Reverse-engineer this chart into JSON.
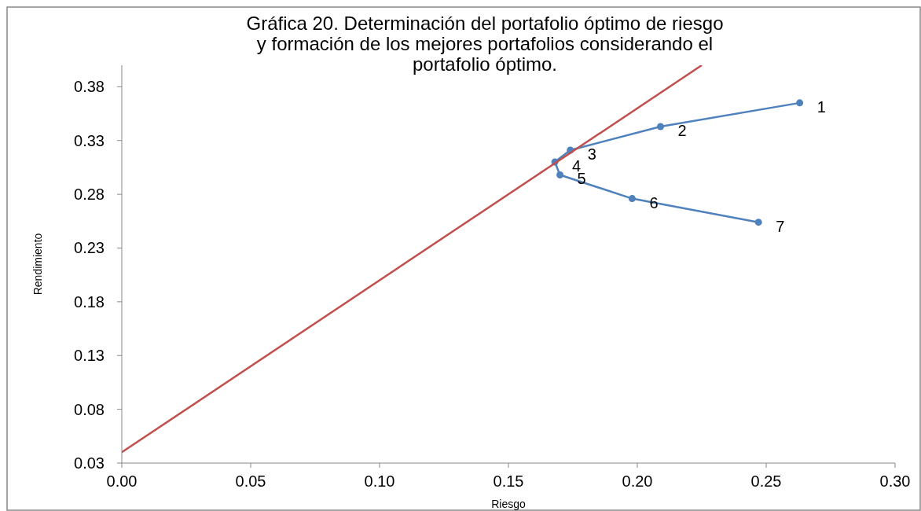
{
  "chart_data": {
    "type": "line",
    "title": "Gráfica 20. Determinación del portafolio óptimo de riesgo y formación de los mejores portafolios considerando el portafolio óptimo.",
    "xlabel": "Riesgo",
    "ylabel": "Rendimiento",
    "xlim": [
      0,
      0.3
    ],
    "xticks": [
      {
        "value": 0,
        "label": "0.00"
      },
      {
        "value": 0.05,
        "label": "0.05"
      },
      {
        "value": 0.1,
        "label": "0.10"
      },
      {
        "value": 0.15,
        "label": "0.15"
      },
      {
        "value": 0.2,
        "label": "0.20"
      },
      {
        "value": 0.25,
        "label": "0.25"
      },
      {
        "value": 0.3,
        "label": "0.30"
      }
    ],
    "ylim": [
      0.03,
      0.4
    ],
    "yticks": [
      0.03,
      0.08,
      0.13,
      0.18,
      0.23,
      0.28,
      0.33,
      0.38
    ],
    "grid": false,
    "series": [
      {
        "color": "#4f81bd",
        "marker": "circle",
        "x": [
          0.263,
          0.209,
          0.174,
          0.168,
          0.17,
          0.198,
          0.247
        ],
        "values": [
          0.365,
          0.343,
          0.321,
          0.31,
          0.298,
          0.276,
          0.254
        ]
      },
      {
        "color": "#c0504d",
        "marker": "none",
        "x": [
          0,
          0.225
        ],
        "values": [
          0.04,
          0.4
        ]
      }
    ],
    "annotations": [
      {
        "text": "1",
        "x": 0.263,
        "y": 0.365
      },
      {
        "text": "2",
        "x": 0.209,
        "y": 0.343
      },
      {
        "text": "3",
        "x": 0.174,
        "y": 0.321
      },
      {
        "text": "4",
        "x": 0.168,
        "y": 0.31
      },
      {
        "text": "5",
        "x": 0.17,
        "y": 0.298
      },
      {
        "text": "6",
        "x": 0.198,
        "y": 0.276
      },
      {
        "text": "7",
        "x": 0.247,
        "y": 0.254
      }
    ]
  }
}
